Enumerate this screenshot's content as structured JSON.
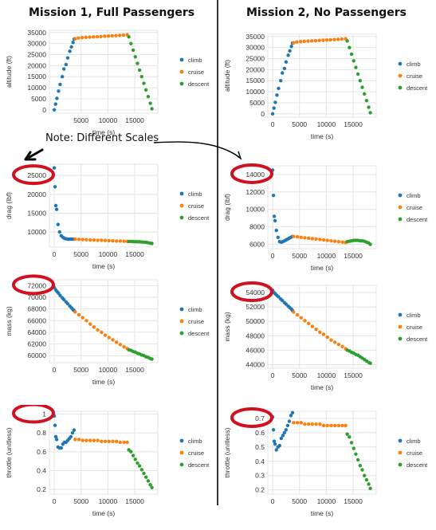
{
  "headings": {
    "left": "Mission 1, Full Passengers",
    "right": "Mission 2, No Passengers"
  },
  "note": "Note: Different Scales",
  "colors": {
    "climb": "#1f77b4",
    "cruise": "#ff7f0e",
    "descent": "#2ca02c",
    "annotation_ring": "#d0111f",
    "grid": "#e4e4e4"
  },
  "legend_labels": [
    "climb",
    "cruise",
    "descent"
  ],
  "chart_data": [
    {
      "id": "m1-altitude",
      "type": "scatter",
      "xlabel": "time (s)",
      "ylabel": "altitude (ft)",
      "xlim": [
        -900,
        19300
      ],
      "ylim": [
        -1500,
        36000
      ],
      "xticks": [
        5000,
        10000,
        15000
      ],
      "yticks": [
        0,
        5000,
        10000,
        15000,
        20000,
        25000,
        30000,
        35000
      ],
      "legend": "right",
      "series": [
        {
          "name": "climb",
          "x": [
            0,
            250,
            500,
            800,
            1100,
            1500,
            1800,
            2200,
            2500,
            2900,
            3200,
            3500,
            3700
          ],
          "y": [
            0,
            2600,
            5200,
            8500,
            11500,
            15000,
            18500,
            20500,
            23500,
            26500,
            28500,
            30500,
            32000
          ]
        },
        {
          "name": "cruise",
          "x": [
            3900,
            4500,
            5200,
            5900,
            6600,
            7300,
            8000,
            8700,
            9400,
            10100,
            10800,
            11500,
            12200,
            12900,
            13600
          ],
          "y": [
            32200,
            32500,
            32700,
            32800,
            32900,
            33000,
            33100,
            33200,
            33300,
            33400,
            33500,
            33600,
            33700,
            33800,
            34000
          ]
        },
        {
          "name": "descent",
          "x": [
            13900,
            14300,
            14700,
            15100,
            15500,
            15900,
            16300,
            16700,
            17100,
            17500,
            17900,
            18200
          ],
          "y": [
            33000,
            30000,
            27000,
            24000,
            21000,
            18000,
            15000,
            12000,
            9000,
            6000,
            3000,
            500
          ]
        }
      ]
    },
    {
      "id": "m2-altitude",
      "type": "scatter",
      "xlabel": "time (s)",
      "ylabel": "altitude (ft)",
      "xlim": [
        -900,
        19300
      ],
      "ylim": [
        -1500,
        36000
      ],
      "xticks": [
        0,
        5000,
        10000,
        15000
      ],
      "yticks": [
        0,
        5000,
        10000,
        15000,
        20000,
        25000,
        30000,
        35000
      ],
      "legend": "right",
      "series": [
        {
          "name": "climb",
          "x": [
            0,
            250,
            500,
            800,
            1100,
            1500,
            1800,
            2200,
            2500,
            2900,
            3200,
            3500,
            3700
          ],
          "y": [
            0,
            2600,
            5200,
            8500,
            11500,
            15000,
            18500,
            20500,
            23500,
            26500,
            28500,
            30500,
            32000
          ]
        },
        {
          "name": "cruise",
          "x": [
            3900,
            4500,
            5200,
            5900,
            6600,
            7300,
            8000,
            8700,
            9400,
            10100,
            10800,
            11500,
            12200,
            12900,
            13600
          ],
          "y": [
            32200,
            32500,
            32700,
            32800,
            32900,
            33000,
            33100,
            33200,
            33300,
            33400,
            33500,
            33600,
            33700,
            33800,
            34000
          ]
        },
        {
          "name": "descent",
          "x": [
            13900,
            14300,
            14700,
            15100,
            15500,
            15900,
            16300,
            16700,
            17100,
            17500,
            17900,
            18200
          ],
          "y": [
            33000,
            30000,
            27000,
            24000,
            21000,
            18000,
            15000,
            12000,
            9000,
            6000,
            3000,
            500
          ]
        }
      ]
    },
    {
      "id": "m1-drag",
      "type": "scatter",
      "xlabel": "time (s)",
      "ylabel": "drag (lbf)",
      "xlim": [
        -900,
        19300
      ],
      "ylim": [
        6000,
        28000
      ],
      "xticks": [
        0,
        5000,
        10000,
        15000
      ],
      "yticks": [
        10000,
        15000,
        20000,
        25000
      ],
      "legend": "right",
      "series": [
        {
          "name": "climb",
          "x": [
            0,
            150,
            300,
            450,
            700,
            1000,
            1300,
            1600,
            1900,
            2200,
            2500,
            2800,
            3100,
            3400,
            3700
          ],
          "y": [
            27000,
            22000,
            17000,
            16000,
            12000,
            10000,
            9000,
            8600,
            8300,
            8200,
            8100,
            8100,
            8100,
            8100,
            8100
          ]
        },
        {
          "name": "cruise",
          "x": [
            3900,
            4600,
            5300,
            6000,
            6700,
            7400,
            8100,
            8800,
            9500,
            10200,
            10900,
            11600,
            12300,
            13000,
            13600
          ],
          "y": [
            8100,
            8050,
            8000,
            7950,
            7900,
            7850,
            7800,
            7800,
            7750,
            7700,
            7650,
            7600,
            7600,
            7550,
            7500
          ]
        },
        {
          "name": "descent",
          "x": [
            13900,
            14300,
            14700,
            15100,
            15500,
            15900,
            16300,
            16700,
            17100,
            17500,
            17900,
            18200
          ],
          "y": [
            7500,
            7500,
            7450,
            7450,
            7400,
            7400,
            7350,
            7300,
            7250,
            7150,
            7050,
            6950
          ]
        }
      ]
    },
    {
      "id": "m2-drag",
      "type": "scatter",
      "xlabel": "time (s)",
      "ylabel": "drag (lbf)",
      "xlim": [
        -900,
        19300
      ],
      "ylim": [
        5500,
        15000
      ],
      "xticks": [
        0,
        5000,
        10000,
        15000
      ],
      "yticks": [
        6000,
        8000,
        10000,
        12000,
        14000
      ],
      "legend": "right",
      "series": [
        {
          "name": "climb",
          "x": [
            0,
            150,
            300,
            450,
            700,
            1000,
            1300,
            1600,
            1900,
            2200,
            2500,
            2800,
            3100,
            3400,
            3700
          ],
          "y": [
            14500,
            11600,
            9200,
            8700,
            7600,
            6800,
            6300,
            6250,
            6300,
            6400,
            6500,
            6600,
            6700,
            6800,
            6900
          ]
        },
        {
          "name": "cruise",
          "x": [
            3900,
            4600,
            5300,
            6000,
            6700,
            7400,
            8100,
            8800,
            9500,
            10200,
            10900,
            11600,
            12300,
            13000,
            13600
          ],
          "y": [
            6900,
            6850,
            6800,
            6750,
            6700,
            6650,
            6600,
            6550,
            6500,
            6450,
            6400,
            6350,
            6300,
            6250,
            6200
          ]
        },
        {
          "name": "descent",
          "x": [
            13900,
            14300,
            14700,
            15100,
            15500,
            15900,
            16300,
            16700,
            17100,
            17500,
            17900,
            18200
          ],
          "y": [
            6300,
            6350,
            6400,
            6450,
            6450,
            6450,
            6400,
            6400,
            6350,
            6250,
            6150,
            6000
          ]
        }
      ]
    },
    {
      "id": "m1-mass",
      "type": "scatter",
      "xlabel": "time (s)",
      "ylabel": "mass (kg)",
      "xlim": [
        -900,
        19300
      ],
      "ylim": [
        58800,
        73000
      ],
      "xticks": [
        0,
        5000,
        10000,
        15000
      ],
      "yticks": [
        60000,
        62000,
        64000,
        66000,
        68000,
        70000,
        72000
      ],
      "legend": "right",
      "series": [
        {
          "name": "climb",
          "x": [
            0,
            250,
            500,
            800,
            1100,
            1500,
            1800,
            2200,
            2500,
            2900,
            3200,
            3500,
            3700
          ],
          "y": [
            71700,
            71300,
            71000,
            70700,
            70300,
            69900,
            69600,
            69200,
            68900,
            68500,
            68200,
            67900,
            67700
          ]
        },
        {
          "name": "cruise",
          "x": [
            3900,
            4600,
            5300,
            6000,
            6700,
            7400,
            8100,
            8800,
            9500,
            10200,
            10900,
            11600,
            12300,
            13000,
            13600
          ],
          "y": [
            67500,
            67000,
            66500,
            66000,
            65400,
            64900,
            64400,
            64000,
            63500,
            63100,
            62700,
            62300,
            61900,
            61500,
            61200
          ]
        },
        {
          "name": "descent",
          "x": [
            13900,
            14300,
            14700,
            15100,
            15500,
            15900,
            16300,
            16700,
            17100,
            17500,
            17900,
            18200
          ],
          "y": [
            61000,
            60900,
            60700,
            60600,
            60400,
            60300,
            60100,
            60000,
            59800,
            59700,
            59500,
            59400
          ]
        }
      ]
    },
    {
      "id": "m2-mass",
      "type": "scatter",
      "xlabel": "time (s)",
      "ylabel": "mass (kg)",
      "xlim": [
        -900,
        19300
      ],
      "ylim": [
        43500,
        55000
      ],
      "xticks": [
        0,
        5000,
        10000,
        15000
      ],
      "yticks": [
        44000,
        46000,
        48000,
        50000,
        52000,
        54000
      ],
      "legend": "right",
      "series": [
        {
          "name": "climb",
          "x": [
            0,
            250,
            500,
            800,
            1100,
            1500,
            1800,
            2200,
            2500,
            2900,
            3200,
            3500,
            3700
          ],
          "y": [
            54300,
            54000,
            53800,
            53600,
            53400,
            53100,
            52900,
            52600,
            52400,
            52100,
            51900,
            51700,
            51500
          ]
        },
        {
          "name": "cruise",
          "x": [
            3900,
            4600,
            5300,
            6000,
            6700,
            7400,
            8100,
            8800,
            9500,
            10200,
            10900,
            11600,
            12300,
            13000,
            13600
          ],
          "y": [
            51300,
            50900,
            50500,
            50100,
            49700,
            49300,
            48900,
            48500,
            48200,
            47800,
            47400,
            47100,
            46800,
            46500,
            46200
          ]
        },
        {
          "name": "descent",
          "x": [
            13900,
            14300,
            14700,
            15100,
            15500,
            15900,
            16300,
            16700,
            17100,
            17500,
            17900,
            18200
          ],
          "y": [
            46000,
            45900,
            45700,
            45600,
            45400,
            45300,
            45100,
            44900,
            44700,
            44500,
            44300,
            44200
          ]
        }
      ]
    },
    {
      "id": "m1-throttle",
      "type": "scatter",
      "xlabel": "time (s)",
      "ylabel": "throttle (unitless)",
      "xlim": [
        -900,
        19300
      ],
      "ylim": [
        0.15,
        1.03
      ],
      "xticks": [
        0,
        5000,
        10000,
        15000
      ],
      "yticks": [
        0.2,
        0.4,
        0.6,
        0.8,
        1
      ],
      "legend": "right",
      "series": [
        {
          "name": "climb",
          "x": [
            0,
            150,
            300,
            450,
            700,
            1000,
            1300,
            1600,
            1900,
            2200,
            2500,
            2800,
            3100,
            3400,
            3700
          ],
          "y": [
            0.98,
            0.88,
            0.76,
            0.73,
            0.65,
            0.64,
            0.64,
            0.68,
            0.7,
            0.7,
            0.72,
            0.74,
            0.76,
            0.8,
            0.83
          ]
        },
        {
          "name": "cruise",
          "x": [
            3900,
            4600,
            5300,
            6000,
            6700,
            7400,
            8100,
            8800,
            9500,
            10200,
            10900,
            11600,
            12300,
            13000,
            13600
          ],
          "y": [
            0.73,
            0.73,
            0.72,
            0.72,
            0.72,
            0.72,
            0.72,
            0.71,
            0.71,
            0.71,
            0.71,
            0.71,
            0.7,
            0.7,
            0.7
          ]
        },
        {
          "name": "descent",
          "x": [
            13900,
            14300,
            14700,
            15100,
            15500,
            15900,
            16300,
            16700,
            17100,
            17500,
            17900,
            18200
          ],
          "y": [
            0.62,
            0.6,
            0.56,
            0.52,
            0.48,
            0.45,
            0.41,
            0.37,
            0.33,
            0.29,
            0.25,
            0.22
          ]
        }
      ]
    },
    {
      "id": "m2-throttle",
      "type": "scatter",
      "xlabel": "time (s)",
      "ylabel": "throttle (unitless)",
      "xlim": [
        -900,
        19300
      ],
      "ylim": [
        0.17,
        0.75
      ],
      "xticks": [
        0,
        5000,
        10000,
        15000
      ],
      "yticks": [
        0.2,
        0.3,
        0.4,
        0.5,
        0.6,
        0.7
      ],
      "legend": "right",
      "series": [
        {
          "name": "climb",
          "x": [
            0,
            150,
            300,
            450,
            700,
            1000,
            1300,
            1600,
            1900,
            2200,
            2500,
            2800,
            3100,
            3400,
            3700
          ],
          "y": [
            0.71,
            0.62,
            0.54,
            0.52,
            0.48,
            0.5,
            0.51,
            0.56,
            0.58,
            0.6,
            0.62,
            0.65,
            0.68,
            0.72,
            0.74
          ]
        },
        {
          "name": "cruise",
          "x": [
            3900,
            4600,
            5300,
            6000,
            6700,
            7400,
            8100,
            8800,
            9500,
            10200,
            10900,
            11600,
            12300,
            13000,
            13600
          ],
          "y": [
            0.67,
            0.67,
            0.67,
            0.66,
            0.66,
            0.66,
            0.66,
            0.66,
            0.65,
            0.65,
            0.65,
            0.65,
            0.65,
            0.65,
            0.65
          ]
        },
        {
          "name": "descent",
          "x": [
            13900,
            14300,
            14700,
            15100,
            15500,
            15900,
            16300,
            16700,
            17100,
            17500,
            17900,
            18200
          ],
          "y": [
            0.59,
            0.57,
            0.53,
            0.49,
            0.45,
            0.41,
            0.37,
            0.34,
            0.3,
            0.27,
            0.24,
            0.21
          ]
        }
      ]
    }
  ]
}
